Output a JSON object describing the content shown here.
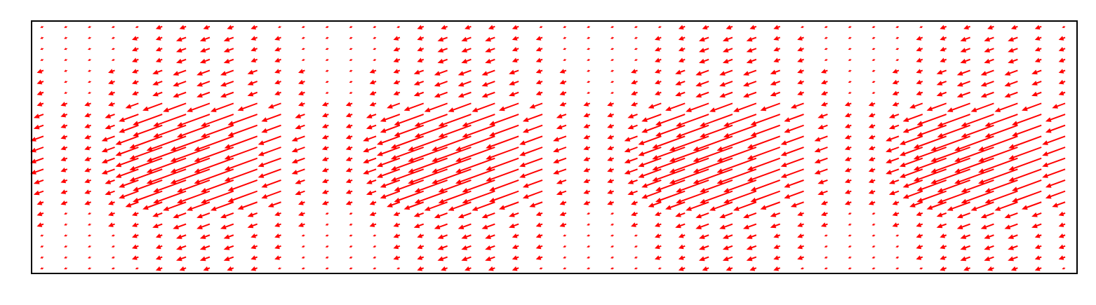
{
  "chart_data": {
    "type": "quiver",
    "color": "#ff0000",
    "angle": 200,
    "x": [
      0,
      1,
      2,
      3,
      4,
      5,
      6,
      7,
      8,
      9,
      10,
      11,
      12,
      13,
      14,
      15,
      16,
      17,
      18,
      19,
      20,
      21,
      22,
      23,
      24,
      25,
      26,
      27,
      28,
      29,
      30,
      31,
      32,
      33,
      34,
      35,
      36,
      37,
      38,
      39,
      40,
      41,
      42,
      43
    ],
    "y": [
      22,
      21,
      20,
      19,
      18,
      17,
      16,
      15,
      14,
      13,
      12,
      11,
      10,
      9,
      8,
      7,
      6,
      5,
      4,
      3,
      2,
      1,
      0
    ],
    "xlim": [
      -0.5,
      43.5
    ],
    "ylim": [
      -0.5,
      22.5
    ],
    "values": [
      [
        1,
        1,
        1,
        1,
        1,
        2,
        2,
        2,
        2,
        2,
        1,
        1,
        1,
        1,
        1,
        1,
        2,
        2,
        2,
        2,
        2,
        1,
        1,
        1,
        1,
        1,
        1,
        2,
        2,
        2,
        2,
        2,
        1,
        1,
        1,
        1,
        1,
        1,
        2,
        2,
        2,
        2,
        2,
        1
      ],
      [
        1,
        1,
        1,
        1,
        2,
        2,
        3,
        3,
        3,
        2,
        2,
        1,
        1,
        1,
        1,
        2,
        2,
        3,
        3,
        3,
        2,
        2,
        1,
        1,
        1,
        1,
        2,
        2,
        3,
        3,
        3,
        2,
        2,
        1,
        1,
        1,
        1,
        2,
        2,
        3,
        3,
        3,
        2,
        2
      ],
      [
        1,
        1,
        1,
        1,
        2,
        2,
        3,
        3,
        3,
        2,
        2,
        1,
        1,
        1,
        1,
        2,
        2,
        3,
        3,
        3,
        2,
        2,
        1,
        1,
        1,
        1,
        2,
        2,
        3,
        3,
        3,
        2,
        2,
        1,
        1,
        1,
        1,
        2,
        2,
        3,
        3,
        3,
        2,
        2
      ],
      [
        1,
        1,
        1,
        1,
        2,
        2,
        3,
        3,
        3,
        2,
        2,
        1,
        1,
        1,
        1,
        2,
        2,
        3,
        3,
        3,
        2,
        2,
        1,
        1,
        1,
        1,
        2,
        2,
        3,
        3,
        3,
        2,
        2,
        1,
        1,
        1,
        1,
        2,
        2,
        3,
        3,
        3,
        2,
        2
      ],
      [
        2,
        1,
        1,
        2,
        2,
        3,
        4,
        4,
        4,
        3,
        2,
        2,
        1,
        1,
        2,
        2,
        3,
        4,
        4,
        4,
        3,
        2,
        2,
        1,
        1,
        2,
        2,
        3,
        4,
        4,
        4,
        3,
        2,
        2,
        1,
        1,
        2,
        2,
        3,
        4,
        4,
        4,
        3,
        2
      ],
      [
        2,
        1,
        1,
        2,
        2,
        3,
        4,
        4,
        4,
        3,
        2,
        2,
        1,
        1,
        2,
        2,
        3,
        4,
        4,
        4,
        3,
        2,
        2,
        1,
        1,
        2,
        2,
        3,
        4,
        4,
        4,
        3,
        2,
        2,
        1,
        1,
        2,
        2,
        3,
        4,
        4,
        4,
        3,
        2
      ],
      [
        2,
        1,
        1,
        2,
        2,
        3,
        4,
        4,
        4,
        3,
        2,
        2,
        1,
        1,
        2,
        2,
        3,
        4,
        4,
        4,
        3,
        2,
        2,
        1,
        1,
        2,
        2,
        3,
        4,
        4,
        4,
        3,
        2,
        2,
        1,
        1,
        2,
        2,
        3,
        4,
        4,
        4,
        3,
        2
      ],
      [
        2,
        2,
        2,
        2,
        4,
        6,
        7,
        7,
        7,
        6,
        4,
        2,
        2,
        2,
        2,
        4,
        6,
        7,
        7,
        7,
        6,
        4,
        2,
        2,
        2,
        2,
        4,
        6,
        7,
        7,
        7,
        6,
        4,
        2,
        2,
        2,
        2,
        4,
        6,
        7,
        7,
        7,
        6,
        4
      ],
      [
        3,
        2,
        2,
        3,
        6,
        9,
        10,
        10,
        10,
        9,
        6,
        3,
        2,
        2,
        3,
        6,
        9,
        10,
        10,
        10,
        9,
        6,
        3,
        2,
        2,
        3,
        6,
        9,
        10,
        10,
        10,
        9,
        6,
        3,
        2,
        2,
        3,
        6,
        9,
        10,
        10,
        10,
        9,
        6
      ],
      [
        3,
        2,
        2,
        3,
        6,
        9,
        10,
        10,
        10,
        9,
        6,
        3,
        2,
        2,
        3,
        6,
        9,
        10,
        10,
        10,
        9,
        6,
        3,
        2,
        2,
        3,
        6,
        9,
        10,
        10,
        10,
        9,
        6,
        3,
        2,
        2,
        3,
        6,
        9,
        10,
        10,
        10,
        9,
        6
      ],
      [
        4,
        2,
        2,
        4,
        7,
        10,
        12,
        12,
        12,
        10,
        7,
        4,
        2,
        2,
        4,
        7,
        10,
        12,
        12,
        12,
        10,
        7,
        4,
        2,
        2,
        4,
        7,
        10,
        12,
        12,
        12,
        10,
        7,
        4,
        2,
        2,
        4,
        7,
        10,
        12,
        12,
        12,
        10,
        7
      ],
      [
        4,
        2,
        2,
        4,
        7,
        10,
        12,
        12,
        12,
        10,
        7,
        4,
        2,
        2,
        4,
        7,
        10,
        12,
        12,
        12,
        10,
        7,
        4,
        2,
        2,
        4,
        7,
        10,
        12,
        12,
        12,
        10,
        7,
        4,
        2,
        2,
        4,
        7,
        10,
        12,
        12,
        12,
        10,
        7
      ],
      [
        4,
        2,
        2,
        4,
        7,
        10,
        12,
        12,
        12,
        10,
        7,
        4,
        2,
        2,
        4,
        7,
        10,
        12,
        12,
        12,
        10,
        7,
        4,
        2,
        2,
        4,
        7,
        10,
        12,
        12,
        12,
        10,
        7,
        4,
        2,
        2,
        4,
        7,
        10,
        12,
        12,
        12,
        10,
        7
      ],
      [
        4,
        2,
        2,
        4,
        7,
        10,
        12,
        12,
        12,
        10,
        7,
        4,
        2,
        2,
        4,
        7,
        10,
        12,
        12,
        12,
        10,
        7,
        4,
        2,
        2,
        4,
        7,
        10,
        12,
        12,
        12,
        10,
        7,
        4,
        2,
        2,
        4,
        7,
        10,
        12,
        12,
        12,
        10,
        7
      ],
      [
        3,
        2,
        2,
        3,
        6,
        9,
        10,
        10,
        10,
        9,
        6,
        3,
        2,
        2,
        3,
        6,
        9,
        10,
        10,
        10,
        9,
        6,
        3,
        2,
        2,
        3,
        6,
        9,
        10,
        10,
        10,
        9,
        6,
        3,
        2,
        2,
        3,
        6,
        9,
        10,
        10,
        10,
        9,
        6
      ],
      [
        3,
        2,
        2,
        3,
        6,
        9,
        10,
        10,
        10,
        9,
        6,
        3,
        2,
        2,
        3,
        6,
        9,
        10,
        10,
        10,
        9,
        6,
        3,
        2,
        2,
        3,
        6,
        9,
        10,
        10,
        10,
        9,
        6,
        3,
        2,
        2,
        3,
        6,
        9,
        10,
        10,
        10,
        9,
        6
      ],
      [
        2,
        2,
        2,
        2,
        4,
        6,
        7,
        7,
        7,
        6,
        4,
        2,
        2,
        2,
        2,
        4,
        6,
        7,
        7,
        7,
        6,
        4,
        2,
        2,
        2,
        2,
        4,
        6,
        7,
        7,
        7,
        6,
        4,
        2,
        2,
        2,
        2,
        4,
        6,
        7,
        7,
        7,
        6,
        4
      ],
      [
        2,
        1,
        1,
        2,
        2,
        3,
        4,
        4,
        4,
        3,
        2,
        2,
        1,
        1,
        2,
        2,
        3,
        4,
        4,
        4,
        3,
        2,
        2,
        1,
        1,
        2,
        2,
        3,
        4,
        4,
        4,
        3,
        2,
        2,
        1,
        1,
        2,
        2,
        3,
        4,
        4,
        4,
        3,
        2
      ],
      [
        2,
        1,
        1,
        2,
        2,
        3,
        4,
        4,
        4,
        3,
        2,
        2,
        1,
        1,
        2,
        2,
        3,
        4,
        4,
        4,
        3,
        2,
        2,
        1,
        1,
        2,
        2,
        3,
        4,
        4,
        4,
        3,
        2,
        2,
        1,
        1,
        2,
        2,
        3,
        4,
        4,
        4,
        3,
        2
      ],
      [
        1,
        1,
        1,
        1,
        2,
        2,
        3,
        3,
        3,
        2,
        2,
        1,
        1,
        1,
        1,
        2,
        2,
        3,
        3,
        3,
        2,
        2,
        1,
        1,
        1,
        1,
        2,
        2,
        3,
        3,
        3,
        2,
        2,
        1,
        1,
        1,
        1,
        2,
        2,
        3,
        3,
        3,
        2,
        2
      ],
      [
        1,
        1,
        1,
        1,
        2,
        2,
        3,
        3,
        3,
        2,
        2,
        1,
        1,
        1,
        1,
        2,
        2,
        3,
        3,
        3,
        2,
        2,
        1,
        1,
        1,
        1,
        2,
        2,
        3,
        3,
        3,
        2,
        2,
        1,
        1,
        1,
        1,
        2,
        2,
        3,
        3,
        3,
        2,
        2
      ],
      [
        1,
        1,
        1,
        1,
        2,
        2,
        3,
        3,
        3,
        2,
        2,
        1,
        1,
        1,
        1,
        2,
        2,
        3,
        3,
        3,
        2,
        2,
        1,
        1,
        1,
        1,
        2,
        2,
        3,
        3,
        3,
        2,
        2,
        1,
        1,
        1,
        1,
        2,
        2,
        3,
        3,
        3,
        2,
        2
      ],
      [
        1,
        1,
        1,
        1,
        1,
        2,
        2,
        2,
        2,
        2,
        1,
        1,
        1,
        1,
        1,
        1,
        2,
        2,
        2,
        2,
        2,
        1,
        1,
        1,
        1,
        1,
        1,
        2,
        2,
        2,
        2,
        2,
        1,
        1,
        1,
        1,
        1,
        1,
        2,
        2,
        2,
        2,
        2,
        1
      ]
    ]
  }
}
